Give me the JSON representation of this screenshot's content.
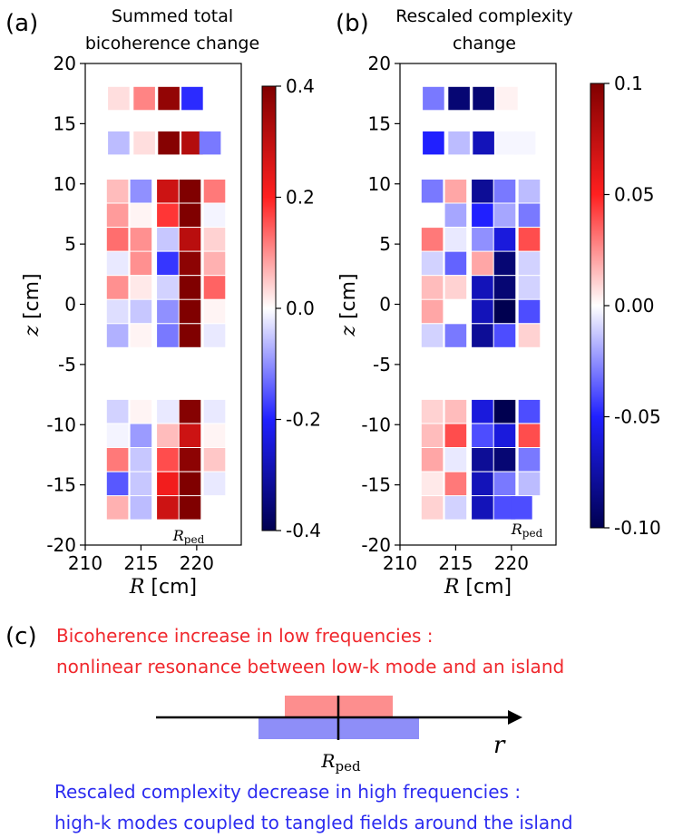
{
  "panels": {
    "a": {
      "label": "(a)",
      "title_line1": "Summed total",
      "title_line2": "bicoherence change"
    },
    "b": {
      "label": "(b)",
      "title_line1": "Rescaled complexity",
      "title_line2": "change"
    },
    "c": {
      "label": "(c)"
    }
  },
  "axes": {
    "xlabel_var": "R",
    "xlabel_unit": " [cm]",
    "ylabel_var": "z",
    "ylabel_unit": " [cm]",
    "xticks": [
      210,
      215,
      220
    ],
    "yticks": [
      20,
      15,
      10,
      5,
      0,
      -5,
      -10,
      -15,
      -20
    ],
    "xlim": [
      210,
      224
    ],
    "ylim": [
      -20,
      20
    ]
  },
  "annotation": {
    "r_main": "R",
    "r_sub": "ped"
  },
  "colorbars": {
    "a": {
      "ticks": [
        "0.4",
        "0.2",
        "0.0",
        "-0.2",
        "-0.4"
      ],
      "vmin": -0.4,
      "vmax": 0.4
    },
    "b": {
      "ticks": [
        "0.1",
        "0.05",
        "0.00",
        "-0.05",
        "-0.10"
      ],
      "vmin": -0.1,
      "vmax": 0.1
    }
  },
  "diagram": {
    "red_line1": "Bicoherence increase in low frequencies :",
    "red_line2": "nonlinear resonance between low-k mode and an island",
    "blue_line1": "Rescaled complexity decrease in high frequencies :",
    "blue_line2": "high-k modes coupled to tangled fields around the island",
    "axis_label": "r",
    "rped_main": "R",
    "rped_sub": "ped",
    "colors": {
      "red_text": "#f0282d",
      "blue_text": "#2c2cf0",
      "red_box": "#fd8e8e",
      "blue_box": "#8e8ef8"
    }
  },
  "chart_data": [
    {
      "type": "heatmap",
      "panel": "a",
      "title": "Summed total bicoherence change",
      "xlabel": "R [cm]",
      "ylabel": "z [cm]",
      "xlim": [
        210,
        224
      ],
      "ylim": [
        -20,
        20
      ],
      "cell_width_cm": 2,
      "cell_height_cm": 2,
      "vmin": -0.4,
      "vmax": 0.4,
      "colormap": "seismic",
      "cells": [
        {
          "r": 213.0,
          "z": 17.1,
          "v": 0.03
        },
        {
          "r": 215.3,
          "z": 17.1,
          "v": 0.11
        },
        {
          "r": 217.5,
          "z": 17.1,
          "v": 0.37
        },
        {
          "r": 219.6,
          "z": 17.1,
          "v": -0.19
        },
        {
          "r": 213.0,
          "z": 13.4,
          "v": -0.06
        },
        {
          "r": 215.3,
          "z": 13.4,
          "v": 0.03
        },
        {
          "r": 217.5,
          "z": 13.4,
          "v": 0.39
        },
        {
          "r": 219.6,
          "z": 13.4,
          "v": 0.32
        },
        {
          "r": 221.2,
          "z": 13.4,
          "v": -0.12
        },
        {
          "r": 212.9,
          "z": 9.4,
          "v": 0.06
        },
        {
          "r": 215.0,
          "z": 9.4,
          "v": -0.1
        },
        {
          "r": 217.4,
          "z": 9.4,
          "v": 0.28
        },
        {
          "r": 219.4,
          "z": 9.4,
          "v": 0.4
        },
        {
          "r": 221.6,
          "z": 9.4,
          "v": 0.12
        },
        {
          "r": 212.9,
          "z": 7.4,
          "v": 0.09
        },
        {
          "r": 215.0,
          "z": 7.4,
          "v": 0.01
        },
        {
          "r": 217.4,
          "z": 7.4,
          "v": 0.18
        },
        {
          "r": 219.4,
          "z": 7.4,
          "v": 0.4
        },
        {
          "r": 221.6,
          "z": 7.4,
          "v": -0.01
        },
        {
          "r": 212.9,
          "z": 5.4,
          "v": 0.13
        },
        {
          "r": 215.0,
          "z": 5.4,
          "v": 0.1
        },
        {
          "r": 217.4,
          "z": 5.4,
          "v": -0.05
        },
        {
          "r": 219.4,
          "z": 5.4,
          "v": 0.31
        },
        {
          "r": 221.6,
          "z": 5.4,
          "v": 0.04
        },
        {
          "r": 212.9,
          "z": 3.4,
          "v": -0.02
        },
        {
          "r": 215.0,
          "z": 3.4,
          "v": 0.1
        },
        {
          "r": 217.4,
          "z": 3.4,
          "v": -0.18
        },
        {
          "r": 219.4,
          "z": 3.4,
          "v": 0.38
        },
        {
          "r": 221.6,
          "z": 3.4,
          "v": 0.07
        },
        {
          "r": 212.9,
          "z": 1.4,
          "v": 0.1
        },
        {
          "r": 215.0,
          "z": 1.4,
          "v": 0.02
        },
        {
          "r": 217.4,
          "z": 1.4,
          "v": -0.04
        },
        {
          "r": 219.4,
          "z": 1.4,
          "v": 0.4
        },
        {
          "r": 221.6,
          "z": 1.4,
          "v": 0.14
        },
        {
          "r": 212.9,
          "z": -0.6,
          "v": -0.03
        },
        {
          "r": 215.0,
          "z": -0.6,
          "v": -0.05
        },
        {
          "r": 217.4,
          "z": -0.6,
          "v": -0.1
        },
        {
          "r": 219.4,
          "z": -0.6,
          "v": 0.4
        },
        {
          "r": 221.6,
          "z": -0.6,
          "v": 0.01
        },
        {
          "r": 212.9,
          "z": -2.6,
          "v": -0.07
        },
        {
          "r": 215.0,
          "z": -2.6,
          "v": 0.01
        },
        {
          "r": 217.4,
          "z": -2.6,
          "v": -0.12
        },
        {
          "r": 219.4,
          "z": -2.6,
          "v": 0.4
        },
        {
          "r": 221.6,
          "z": -2.6,
          "v": -0.02
        },
        {
          "r": 212.9,
          "z": -8.9,
          "v": -0.04
        },
        {
          "r": 215.0,
          "z": -8.9,
          "v": 0.01
        },
        {
          "r": 217.4,
          "z": -8.9,
          "v": -0.02
        },
        {
          "r": 219.4,
          "z": -8.9,
          "v": 0.39
        },
        {
          "r": 221.6,
          "z": -8.9,
          "v": -0.02
        },
        {
          "r": 212.9,
          "z": -10.9,
          "v": -0.01
        },
        {
          "r": 215.0,
          "z": -10.9,
          "v": -0.09
        },
        {
          "r": 217.4,
          "z": -10.9,
          "v": 0.06
        },
        {
          "r": 219.4,
          "z": -10.9,
          "v": 0.28
        },
        {
          "r": 221.6,
          "z": -10.9,
          "v": 0.01
        },
        {
          "r": 212.9,
          "z": -12.9,
          "v": 0.12
        },
        {
          "r": 215.0,
          "z": -12.9,
          "v": -0.05
        },
        {
          "r": 217.4,
          "z": -12.9,
          "v": 0.16
        },
        {
          "r": 219.4,
          "z": -12.9,
          "v": 0.38
        },
        {
          "r": 221.6,
          "z": -12.9,
          "v": 0.05
        },
        {
          "r": 212.9,
          "z": -14.9,
          "v": -0.15
        },
        {
          "r": 215.0,
          "z": -14.9,
          "v": -0.05
        },
        {
          "r": 217.4,
          "z": -14.9,
          "v": 0.22
        },
        {
          "r": 219.4,
          "z": -14.9,
          "v": 0.4
        },
        {
          "r": 221.6,
          "z": -14.9,
          "v": -0.02
        },
        {
          "r": 212.9,
          "z": -16.9,
          "v": 0.07
        },
        {
          "r": 215.0,
          "z": -16.9,
          "v": -0.06
        },
        {
          "r": 217.4,
          "z": -16.9,
          "v": 0.28
        },
        {
          "r": 219.4,
          "z": -16.9,
          "v": 0.4
        }
      ]
    },
    {
      "type": "heatmap",
      "panel": "b",
      "title": "Rescaled complexity change",
      "xlabel": "R [cm]",
      "ylabel": "z [cm]",
      "xlim": [
        210,
        224
      ],
      "ylim": [
        -20,
        20
      ],
      "cell_width_cm": 2,
      "cell_height_cm": 2,
      "vmin": -0.1,
      "vmax": 0.1,
      "colormap": "seismic",
      "cells": [
        {
          "r": 213.0,
          "z": 17.1,
          "v": -0.03
        },
        {
          "r": 215.3,
          "z": 17.1,
          "v": -0.09
        },
        {
          "r": 217.5,
          "z": 17.1,
          "v": -0.09
        },
        {
          "r": 219.6,
          "z": 17.1,
          "v": 0.003
        },
        {
          "r": 213.0,
          "z": 13.4,
          "v": -0.05
        },
        {
          "r": 215.3,
          "z": 13.4,
          "v": -0.015
        },
        {
          "r": 217.5,
          "z": 13.4,
          "v": -0.07
        },
        {
          "r": 219.6,
          "z": 13.4,
          "v": -0.002
        },
        {
          "r": 221.2,
          "z": 13.4,
          "v": -0.002
        },
        {
          "r": 212.9,
          "z": 9.4,
          "v": -0.03
        },
        {
          "r": 215.0,
          "z": 9.4,
          "v": 0.02
        },
        {
          "r": 217.4,
          "z": 9.4,
          "v": -0.08
        },
        {
          "r": 219.4,
          "z": 9.4,
          "v": -0.03
        },
        {
          "r": 221.6,
          "z": 9.4,
          "v": -0.015
        },
        {
          "r": 212.9,
          "z": 7.4,
          "v": 0.0
        },
        {
          "r": 215.0,
          "z": 7.4,
          "v": -0.02
        },
        {
          "r": 217.4,
          "z": 7.4,
          "v": -0.05
        },
        {
          "r": 219.4,
          "z": 7.4,
          "v": -0.02
        },
        {
          "r": 221.6,
          "z": 7.4,
          "v": -0.03
        },
        {
          "r": 212.9,
          "z": 5.4,
          "v": 0.03
        },
        {
          "r": 215.0,
          "z": 5.4,
          "v": -0.005
        },
        {
          "r": 217.4,
          "z": 5.4,
          "v": -0.025
        },
        {
          "r": 219.4,
          "z": 5.4,
          "v": -0.06
        },
        {
          "r": 221.6,
          "z": 5.4,
          "v": 0.04
        },
        {
          "r": 212.9,
          "z": 3.4,
          "v": -0.01
        },
        {
          "r": 215.0,
          "z": 3.4,
          "v": -0.035
        },
        {
          "r": 217.4,
          "z": 3.4,
          "v": 0.02
        },
        {
          "r": 219.4,
          "z": 3.4,
          "v": -0.09
        },
        {
          "r": 221.6,
          "z": 3.4,
          "v": -0.01
        },
        {
          "r": 212.9,
          "z": 1.4,
          "v": 0.015
        },
        {
          "r": 215.0,
          "z": 1.4,
          "v": 0.01
        },
        {
          "r": 217.4,
          "z": 1.4,
          "v": -0.07
        },
        {
          "r": 219.4,
          "z": 1.4,
          "v": -0.09
        },
        {
          "r": 221.6,
          "z": 1.4,
          "v": -0.01
        },
        {
          "r": 212.9,
          "z": -0.6,
          "v": 0.02
        },
        {
          "r": 215.0,
          "z": -0.6,
          "v": 0.0
        },
        {
          "r": 217.4,
          "z": -0.6,
          "v": -0.07
        },
        {
          "r": 219.4,
          "z": -0.6,
          "v": -0.1
        },
        {
          "r": 221.6,
          "z": -0.6,
          "v": -0.04
        },
        {
          "r": 212.9,
          "z": -2.6,
          "v": -0.01
        },
        {
          "r": 215.0,
          "z": -2.6,
          "v": -0.03
        },
        {
          "r": 217.4,
          "z": -2.6,
          "v": -0.08
        },
        {
          "r": 219.4,
          "z": -2.6,
          "v": -0.04
        },
        {
          "r": 221.6,
          "z": -2.6,
          "v": 0.01
        },
        {
          "r": 212.9,
          "z": -8.9,
          "v": 0.01
        },
        {
          "r": 215.0,
          "z": -8.9,
          "v": 0.015
        },
        {
          "r": 217.4,
          "z": -8.9,
          "v": -0.06
        },
        {
          "r": 219.4,
          "z": -8.9,
          "v": -0.1
        },
        {
          "r": 221.6,
          "z": -8.9,
          "v": -0.04
        },
        {
          "r": 212.9,
          "z": -10.9,
          "v": 0.015
        },
        {
          "r": 215.0,
          "z": -10.9,
          "v": 0.04
        },
        {
          "r": 217.4,
          "z": -10.9,
          "v": -0.04
        },
        {
          "r": 219.4,
          "z": -10.9,
          "v": -0.06
        },
        {
          "r": 221.6,
          "z": -10.9,
          "v": 0.04
        },
        {
          "r": 212.9,
          "z": -12.9,
          "v": 0.02
        },
        {
          "r": 215.0,
          "z": -12.9,
          "v": -0.005
        },
        {
          "r": 217.4,
          "z": -12.9,
          "v": -0.08
        },
        {
          "r": 219.4,
          "z": -12.9,
          "v": -0.09
        },
        {
          "r": 221.6,
          "z": -12.9,
          "v": -0.03
        },
        {
          "r": 212.9,
          "z": -14.9,
          "v": 0.005
        },
        {
          "r": 215.0,
          "z": -14.9,
          "v": 0.03
        },
        {
          "r": 217.4,
          "z": -14.9,
          "v": -0.07
        },
        {
          "r": 219.4,
          "z": -14.9,
          "v": -0.03
        },
        {
          "r": 221.6,
          "z": -14.9,
          "v": -0.015
        },
        {
          "r": 212.9,
          "z": -16.9,
          "v": 0.01
        },
        {
          "r": 215.0,
          "z": -16.9,
          "v": -0.01
        },
        {
          "r": 217.4,
          "z": -16.9,
          "v": -0.07
        },
        {
          "r": 219.4,
          "z": -16.9,
          "v": -0.04
        },
        {
          "r": 220.9,
          "z": -16.9,
          "v": -0.04
        }
      ]
    }
  ]
}
